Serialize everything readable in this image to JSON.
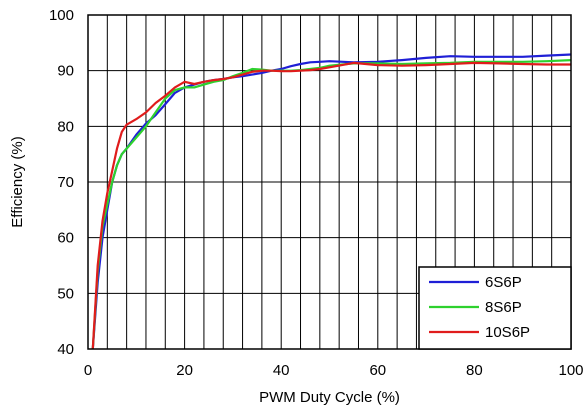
{
  "chart_data": {
    "type": "line",
    "title": "",
    "xlabel": "PWM Duty Cycle (%)",
    "ylabel": "Efficiency (%)",
    "xlim": [
      0,
      100
    ],
    "ylim": [
      40,
      100
    ],
    "x_ticks": [
      0,
      20,
      40,
      60,
      80,
      100
    ],
    "y_ticks": [
      40,
      50,
      60,
      70,
      80,
      90,
      100
    ],
    "x_tick_labels": [
      "0",
      "20",
      "40",
      "60",
      "80",
      "100"
    ],
    "y_tick_labels": [
      "40",
      "50",
      "60",
      "70",
      "80",
      "90",
      "100"
    ],
    "grid": {
      "vertical_step": 4,
      "horizontal_step": 10
    },
    "legend_position": "bottom-right",
    "series": [
      {
        "name": "6S6P",
        "color": "#1f1fd6",
        "points": [
          [
            1,
            40
          ],
          [
            2,
            52
          ],
          [
            3,
            60
          ],
          [
            4,
            65
          ],
          [
            5,
            70
          ],
          [
            6,
            73
          ],
          [
            7,
            75
          ],
          [
            8,
            76
          ],
          [
            10,
            78.5
          ],
          [
            12,
            80.5
          ],
          [
            14,
            82
          ],
          [
            16,
            84
          ],
          [
            18,
            86
          ],
          [
            20,
            87
          ],
          [
            22,
            87.5
          ],
          [
            24,
            88
          ],
          [
            26,
            88.3
          ],
          [
            28,
            88.5
          ],
          [
            30,
            88.8
          ],
          [
            32,
            89
          ],
          [
            34,
            89.3
          ],
          [
            36,
            89.6
          ],
          [
            38,
            90
          ],
          [
            40,
            90.3
          ],
          [
            42,
            90.8
          ],
          [
            44,
            91.2
          ],
          [
            46,
            91.5
          ],
          [
            48,
            91.6
          ],
          [
            50,
            91.7
          ],
          [
            55,
            91.5
          ],
          [
            60,
            91.6
          ],
          [
            65,
            91.9
          ],
          [
            70,
            92.3
          ],
          [
            75,
            92.6
          ],
          [
            80,
            92.5
          ],
          [
            85,
            92.5
          ],
          [
            90,
            92.5
          ],
          [
            95,
            92.7
          ],
          [
            100,
            92.9
          ]
        ]
      },
      {
        "name": "8S6P",
        "color": "#2ed12e",
        "points": [
          [
            1,
            40
          ],
          [
            2,
            54
          ],
          [
            3,
            62
          ],
          [
            4,
            66
          ],
          [
            5,
            70
          ],
          [
            6,
            73
          ],
          [
            7,
            75
          ],
          [
            8,
            76
          ],
          [
            10,
            78
          ],
          [
            12,
            80
          ],
          [
            14,
            82.5
          ],
          [
            16,
            85
          ],
          [
            18,
            86.5
          ],
          [
            20,
            87
          ],
          [
            22,
            87
          ],
          [
            24,
            87.5
          ],
          [
            26,
            88
          ],
          [
            28,
            88.3
          ],
          [
            30,
            89
          ],
          [
            32,
            89.6
          ],
          [
            34,
            90.3
          ],
          [
            36,
            90.2
          ],
          [
            38,
            90
          ],
          [
            40,
            90
          ],
          [
            42,
            90
          ],
          [
            44,
            90.1
          ],
          [
            46,
            90.3
          ],
          [
            48,
            90.5
          ],
          [
            50,
            90.9
          ],
          [
            55,
            91.3
          ],
          [
            60,
            91.3
          ],
          [
            65,
            91.2
          ],
          [
            70,
            91.3
          ],
          [
            75,
            91.4
          ],
          [
            80,
            91.6
          ],
          [
            85,
            91.6
          ],
          [
            90,
            91.6
          ],
          [
            95,
            91.7
          ],
          [
            100,
            91.9
          ]
        ]
      },
      {
        "name": "10S6P",
        "color": "#e01c1c",
        "points": [
          [
            1,
            40
          ],
          [
            2,
            55
          ],
          [
            3,
            63
          ],
          [
            4,
            68
          ],
          [
            5,
            72
          ],
          [
            6,
            76
          ],
          [
            7,
            79
          ],
          [
            8,
            80.3
          ],
          [
            10,
            81.3
          ],
          [
            12,
            82.5
          ],
          [
            14,
            84.2
          ],
          [
            16,
            85.5
          ],
          [
            18,
            87
          ],
          [
            20,
            88
          ],
          [
            22,
            87.6
          ],
          [
            24,
            88
          ],
          [
            26,
            88.3
          ],
          [
            28,
            88.5
          ],
          [
            30,
            88.8
          ],
          [
            32,
            89.3
          ],
          [
            34,
            89.8
          ],
          [
            36,
            90
          ],
          [
            38,
            90
          ],
          [
            40,
            89.9
          ],
          [
            42,
            89.9
          ],
          [
            44,
            90
          ],
          [
            46,
            90.1
          ],
          [
            48,
            90.3
          ],
          [
            50,
            90.6
          ],
          [
            55,
            91.4
          ],
          [
            60,
            91
          ],
          [
            65,
            90.9
          ],
          [
            70,
            91
          ],
          [
            75,
            91.2
          ],
          [
            80,
            91.4
          ],
          [
            85,
            91.3
          ],
          [
            90,
            91.2
          ],
          [
            95,
            91.1
          ],
          [
            100,
            91.1
          ]
        ]
      }
    ]
  }
}
